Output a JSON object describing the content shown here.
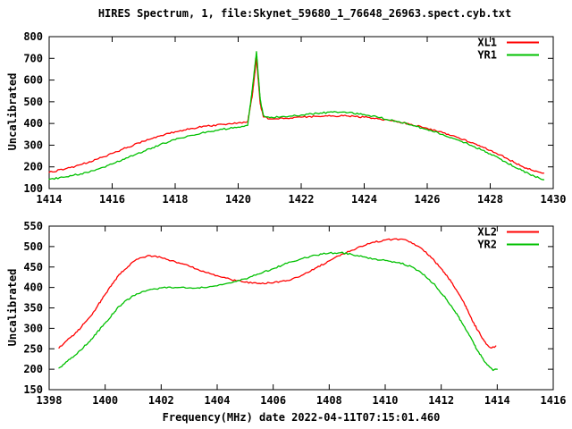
{
  "colors": {
    "background": "#ffffff",
    "frame": "#000000",
    "red_series": "#ff0000",
    "green_series": "#00c000"
  },
  "chart_data": [
    {
      "type": "line",
      "title": "HIRES Spectrum, 1, file:Skynet_59680_1_76648_26963.spect.cyb.txt",
      "ylabel": "Uncalibrated",
      "xlabel": "",
      "xlim": [
        1414,
        1430
      ],
      "ylim": [
        100,
        800
      ],
      "xtick_step": 2,
      "ytick_step": 100,
      "xticks": [
        1414,
        1416,
        1418,
        1420,
        1422,
        1424,
        1426,
        1428,
        1430
      ],
      "yticks": [
        100,
        200,
        300,
        400,
        500,
        600,
        700,
        800
      ],
      "grid": false,
      "legend_position": "top-right-inside",
      "legend": [
        "XL1",
        "YR1"
      ],
      "series": [
        {
          "name": "XL1",
          "color": "#ff0000",
          "points": [
            [
              1414,
              175
            ],
            [
              1414.5,
              190
            ],
            [
              1415,
              210
            ],
            [
              1415.5,
              235
            ],
            [
              1416,
              262
            ],
            [
              1416.5,
              291
            ],
            [
              1417,
              318
            ],
            [
              1417.5,
              342
            ],
            [
              1418,
              362
            ],
            [
              1418.5,
              377
            ],
            [
              1419,
              388
            ],
            [
              1419.5,
              396
            ],
            [
              1420,
              403
            ],
            [
              1420.3,
              408
            ],
            [
              1420.45,
              530
            ],
            [
              1420.58,
              700
            ],
            [
              1420.7,
              490
            ],
            [
              1420.8,
              430
            ],
            [
              1421,
              421
            ],
            [
              1421.5,
              424
            ],
            [
              1422,
              429
            ],
            [
              1422.5,
              433
            ],
            [
              1423,
              435
            ],
            [
              1423.5,
              434
            ],
            [
              1424,
              429
            ],
            [
              1424.5,
              421
            ],
            [
              1425,
              410
            ],
            [
              1425.5,
              396
            ],
            [
              1426,
              378
            ],
            [
              1426.5,
              357
            ],
            [
              1427,
              334
            ],
            [
              1427.5,
              307
            ],
            [
              1428,
              276
            ],
            [
              1428.5,
              241
            ],
            [
              1429,
              203
            ],
            [
              1429.4,
              180
            ],
            [
              1429.7,
              171
            ]
          ]
        },
        {
          "name": "YR1",
          "color": "#00c000",
          "points": [
            [
              1414,
              143
            ],
            [
              1414.5,
              153
            ],
            [
              1415,
              168
            ],
            [
              1415.5,
              188
            ],
            [
              1416,
              213
            ],
            [
              1416.5,
              242
            ],
            [
              1417,
              272
            ],
            [
              1417.5,
              301
            ],
            [
              1418,
              325
            ],
            [
              1418.5,
              345
            ],
            [
              1419,
              361
            ],
            [
              1419.5,
              373
            ],
            [
              1420,
              383
            ],
            [
              1420.3,
              391
            ],
            [
              1420.45,
              560
            ],
            [
              1420.58,
              731
            ],
            [
              1420.7,
              510
            ],
            [
              1420.8,
              437
            ],
            [
              1421,
              427
            ],
            [
              1421.5,
              431
            ],
            [
              1422,
              439
            ],
            [
              1422.5,
              447
            ],
            [
              1423,
              452
            ],
            [
              1423.5,
              450
            ],
            [
              1424,
              441
            ],
            [
              1424.5,
              427
            ],
            [
              1425,
              411
            ],
            [
              1425.5,
              393
            ],
            [
              1426,
              372
            ],
            [
              1426.5,
              349
            ],
            [
              1427,
              323
            ],
            [
              1427.5,
              293
            ],
            [
              1428,
              260
            ],
            [
              1428.5,
              222
            ],
            [
              1429,
              184
            ],
            [
              1429.4,
              157
            ],
            [
              1429.7,
              141
            ]
          ]
        }
      ]
    },
    {
      "type": "line",
      "title": "",
      "ylabel": "Uncalibrated",
      "xlabel": "Frequency(MHz) date 2022-04-11T07:15:01.460",
      "xlim": [
        1398,
        1416
      ],
      "ylim": [
        150,
        550
      ],
      "xtick_step": 2,
      "ytick_step": 50,
      "xticks": [
        1398,
        1400,
        1402,
        1404,
        1406,
        1408,
        1410,
        1412,
        1414,
        1416
      ],
      "yticks": [
        150,
        200,
        250,
        300,
        350,
        400,
        450,
        500,
        550
      ],
      "grid": false,
      "legend_position": "top-right-inside",
      "legend": [
        "XL2",
        "YR2"
      ],
      "series": [
        {
          "name": "XL2",
          "color": "#ff0000",
          "points": [
            [
              1398.35,
              252
            ],
            [
              1399,
              292
            ],
            [
              1399.5,
              331
            ],
            [
              1400,
              383
            ],
            [
              1400.5,
              432
            ],
            [
              1401,
              463
            ],
            [
              1401.3,
              473
            ],
            [
              1401.6,
              478
            ],
            [
              1402,
              473
            ],
            [
              1402.5,
              463
            ],
            [
              1403,
              452
            ],
            [
              1403.5,
              440
            ],
            [
              1404,
              429
            ],
            [
              1404.5,
              419
            ],
            [
              1405,
              413
            ],
            [
              1405.5,
              410
            ],
            [
              1406,
              411
            ],
            [
              1406.5,
              417
            ],
            [
              1407,
              429
            ],
            [
              1407.5,
              447
            ],
            [
              1408,
              465
            ],
            [
              1408.5,
              482
            ],
            [
              1409,
              497
            ],
            [
              1409.5,
              509
            ],
            [
              1410,
              516
            ],
            [
              1410.4,
              519
            ],
            [
              1410.8,
              514
            ],
            [
              1411.2,
              500
            ],
            [
              1411.6,
              477
            ],
            [
              1412,
              446
            ],
            [
              1412.4,
              410
            ],
            [
              1412.8,
              365
            ],
            [
              1413.1,
              320
            ],
            [
              1413.4,
              284
            ],
            [
              1413.6,
              262
            ],
            [
              1413.8,
              252
            ],
            [
              1413.95,
              257
            ]
          ]
        },
        {
          "name": "YR2",
          "color": "#00c000",
          "points": [
            [
              1398.35,
              203
            ],
            [
              1399,
              238
            ],
            [
              1399.5,
              273
            ],
            [
              1400,
              313
            ],
            [
              1400.5,
              354
            ],
            [
              1401,
              380
            ],
            [
              1401.5,
              393
            ],
            [
              1402,
              399
            ],
            [
              1402.5,
              400
            ],
            [
              1403,
              399
            ],
            [
              1403.5,
              400
            ],
            [
              1404,
              404
            ],
            [
              1404.5,
              411
            ],
            [
              1405,
              421
            ],
            [
              1405.5,
              433
            ],
            [
              1406,
              446
            ],
            [
              1406.5,
              459
            ],
            [
              1407,
              470
            ],
            [
              1407.5,
              479
            ],
            [
              1408,
              484
            ],
            [
              1408.4,
              485
            ],
            [
              1408.8,
              481
            ],
            [
              1409.2,
              475
            ],
            [
              1409.6,
              470
            ],
            [
              1410,
              466
            ],
            [
              1410.5,
              461
            ],
            [
              1411,
              449
            ],
            [
              1411.4,
              431
            ],
            [
              1411.8,
              404
            ],
            [
              1412.2,
              370
            ],
            [
              1412.6,
              330
            ],
            [
              1413,
              283
            ],
            [
              1413.3,
              245
            ],
            [
              1413.6,
              215
            ],
            [
              1413.85,
              197
            ],
            [
              1414,
              200
            ]
          ]
        }
      ]
    }
  ]
}
